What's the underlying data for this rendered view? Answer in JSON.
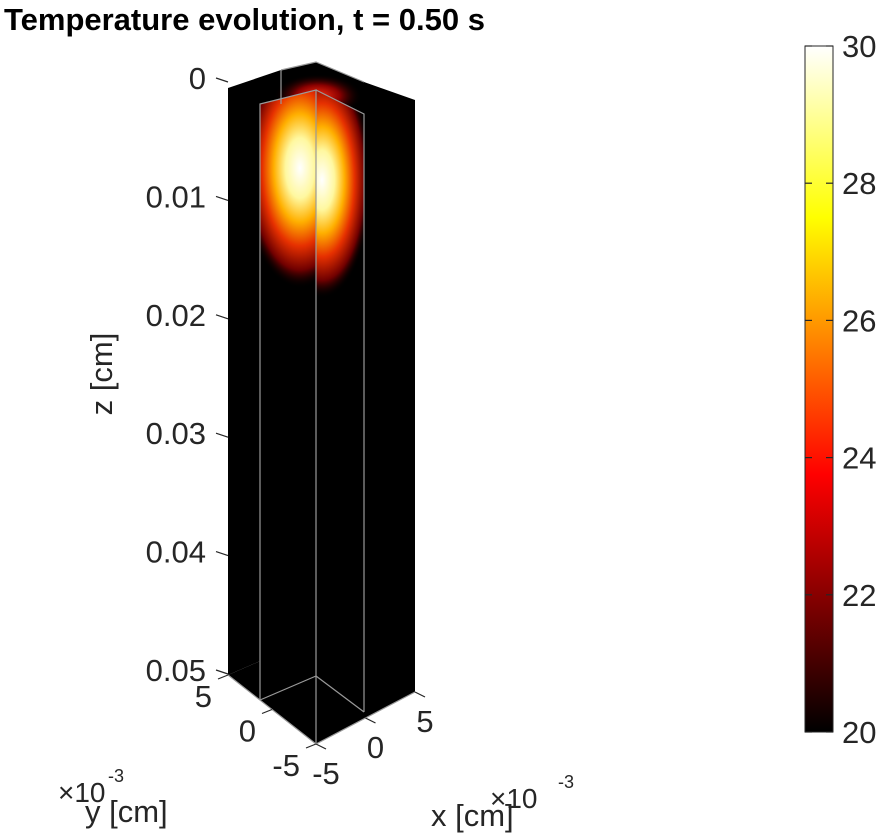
{
  "chart_data": {
    "type": "heatmap",
    "title": "Temperature evolution, t = 0.50 s",
    "plot_style": "3D sliced volume (slices at x=0 and y=0, plus bottom face), inverted z axis",
    "z_axis": {
      "label": "z [cm]",
      "ticks": [
        "0",
        "0.01",
        "0.02",
        "0.03",
        "0.04",
        "0.05"
      ],
      "range": [
        0,
        0.05
      ],
      "direction": "reversed"
    },
    "x_axis": {
      "label": "x [cm]",
      "ticks": [
        "-5",
        "0",
        "5"
      ],
      "exponent": "×10",
      "exponent_power": "-3",
      "range": [
        -0.005,
        0.005
      ]
    },
    "y_axis": {
      "label": "y [cm]",
      "ticks": [
        "5",
        "0",
        "-5"
      ],
      "exponent": "×10",
      "exponent_power": "-3",
      "range": [
        -0.005,
        0.005
      ]
    },
    "colorbar": {
      "colormap": "hot",
      "range": [
        20,
        30
      ],
      "ticks": [
        "20",
        "22",
        "24",
        "26",
        "28",
        "30"
      ]
    },
    "hotspot": {
      "z_center": 0.006,
      "peak_value": 30,
      "background_value": 20
    },
    "grid": false
  }
}
